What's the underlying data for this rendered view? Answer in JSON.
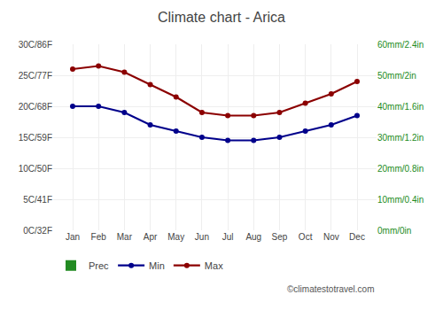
{
  "chart_data": {
    "type": "combo",
    "title": "Climate chart - Arica",
    "categories": [
      "Jan",
      "Feb",
      "Mar",
      "Apr",
      "May",
      "Jun",
      "Jul",
      "Aug",
      "Sep",
      "Oct",
      "Nov",
      "Dec"
    ],
    "series": [
      {
        "name": "Prec",
        "type": "bar",
        "axis": "y2",
        "color": "#228B22",
        "values": [
          0.0,
          0.0,
          0.0,
          0.0,
          0.0,
          0.0,
          0.0,
          0.0,
          0.0,
          0.0,
          0.0,
          0.0
        ]
      },
      {
        "name": "Min",
        "type": "line",
        "marker": "circle",
        "color": "#00008B",
        "values": [
          20.0,
          20.0,
          19.0,
          17.0,
          16.0,
          15.0,
          14.5,
          14.5,
          15.0,
          16.0,
          17.0,
          18.5
        ]
      },
      {
        "name": "Max",
        "type": "line",
        "marker": "circle",
        "color": "#8B0000",
        "values": [
          26.0,
          26.5,
          25.5,
          23.5,
          21.5,
          19.0,
          18.5,
          18.5,
          19.0,
          20.5,
          22.0,
          24.0
        ]
      }
    ],
    "ylim": [
      0,
      30
    ],
    "yticks": [
      {
        "value": 0,
        "label": "0C/32F"
      },
      {
        "value": 5,
        "label": "5C/41F"
      },
      {
        "value": 10,
        "label": "10C/50F"
      },
      {
        "value": 15,
        "label": "15C/59F"
      },
      {
        "value": 20,
        "label": "20C/68F"
      },
      {
        "value": 25,
        "label": "25C/77F"
      },
      {
        "value": 30,
        "label": "30C/86F"
      }
    ],
    "y2lim": [
      0,
      60
    ],
    "y2ticks": [
      {
        "value": 0,
        "label": "0mm/0in"
      },
      {
        "value": 10,
        "label": "10mm/0.4in"
      },
      {
        "value": 20,
        "label": "20mm/0.8in"
      },
      {
        "value": 30,
        "label": "30mm/1.2in"
      },
      {
        "value": 40,
        "label": "40mm/1.6in"
      },
      {
        "value": 50,
        "label": "50mm/2in"
      },
      {
        "value": 60,
        "label": "60mm/2.4in"
      }
    ],
    "grid": true,
    "legend": "bottom",
    "annotations": [
      "©climatestotravel.com"
    ]
  }
}
